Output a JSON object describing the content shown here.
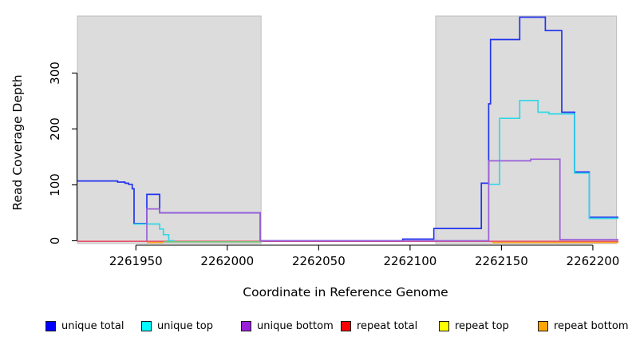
{
  "chart_data": {
    "type": "line",
    "subtype": "step-coverage-plot",
    "title": "",
    "xlabel": "Coordinate in Reference Genome",
    "ylabel": "Read Coverage Depth",
    "xlim": [
      2261918,
      2262214
    ],
    "ylim": [
      0,
      410
    ],
    "grid": false,
    "x_ticks": [
      2261950,
      2262000,
      2262050,
      2262100,
      2262150,
      2262200
    ],
    "y_ticks": [
      0,
      100,
      200,
      300
    ],
    "shaded_regions": [
      {
        "x0": 2261918,
        "x1": 2262018.5,
        "color": "#dcdcdc",
        "note": "left shaded block"
      },
      {
        "x0": 2262114,
        "x1": 2262213,
        "color": "#dcdcdc",
        "note": "right shaded block"
      }
    ],
    "series": [
      {
        "id": "unique_total",
        "name": "unique total",
        "color": "#2233ee",
        "legend_color": "#0000ff",
        "z": 3,
        "segments": [
          [
            [
              2261918,
              107
            ],
            [
              2261940,
              105
            ],
            [
              2261944,
              103
            ],
            [
              2261946,
              101
            ],
            [
              2261948,
              93
            ],
            [
              2261949,
              31
            ],
            [
              2261956,
              83
            ],
            [
              2261963,
              50
            ],
            [
              2262018,
              0
            ],
            [
              2262096,
              3
            ],
            [
              2262113,
              22
            ],
            [
              2262139,
              103
            ],
            [
              2262143,
              245
            ],
            [
              2262144,
              360
            ],
            [
              2262160,
              400
            ],
            [
              2262174,
              376
            ],
            [
              2262183,
              230
            ],
            [
              2262190,
              123
            ],
            [
              2262198,
              42
            ],
            [
              2262214,
              42
            ]
          ]
        ]
      },
      {
        "id": "unique_top",
        "name": "unique top",
        "color": "#2fd8e8",
        "legend_color": "#00ffff",
        "z": 4,
        "segments": [
          [
            [
              2261949,
              30
            ],
            [
              2261963,
              21
            ],
            [
              2261965,
              11
            ],
            [
              2261968,
              0
            ],
            [
              2261971,
              0
            ]
          ],
          [
            [
              2262143,
              101
            ],
            [
              2262149,
              219
            ],
            [
              2262160,
              251
            ],
            [
              2262170,
              230
            ],
            [
              2262176,
              227
            ],
            [
              2262190,
              121
            ],
            [
              2262198,
              40
            ],
            [
              2262214,
              40
            ]
          ]
        ]
      },
      {
        "id": "unique_bottom",
        "name": "unique bottom",
        "color": "#9a5fd8",
        "legend_color": "#9820d8",
        "z": 6,
        "segments": [
          [
            [
              2261956,
              0
            ],
            [
              2261956,
              57
            ],
            [
              2261963,
              50
            ],
            [
              2262018,
              0
            ],
            [
              2262143,
              143
            ],
            [
              2262166,
              146
            ],
            [
              2262182,
              2
            ],
            [
              2262214,
              2
            ]
          ]
        ]
      },
      {
        "id": "repeat_total",
        "name": "repeat total",
        "color": "#e8506a",
        "legend_color": "#ff0000",
        "z": 1,
        "segments": [
          [
            [
              2261918,
              0
            ],
            [
              2262214,
              0
            ]
          ]
        ]
      },
      {
        "id": "repeat_top",
        "name": "repeat top",
        "color": "#74c476",
        "legend_color": "#ffff00",
        "z": 5,
        "segments": [
          [
            [
              2261965,
              0
            ],
            [
              2262019,
              0
            ]
          ]
        ]
      },
      {
        "id": "repeat_bottom",
        "name": "repeat bottom",
        "color": "#ffa520",
        "legend_color": "#ffa500",
        "z": 2,
        "segments": [
          [
            [
              2261956,
              0
            ],
            [
              2261965,
              0
            ]
          ],
          [
            [
              2262145,
              0
            ],
            [
              2262214,
              0
            ]
          ]
        ]
      }
    ],
    "legend": {
      "position": "bottom",
      "entries": [
        {
          "label": "unique total",
          "color": "#0000ff"
        },
        {
          "label": "unique top",
          "color": "#00ffff"
        },
        {
          "label": "unique bottom",
          "color": "#9820d8"
        },
        {
          "label": "repeat total",
          "color": "#ff0000"
        },
        {
          "label": "repeat top",
          "color": "#ffff00"
        },
        {
          "label": "repeat bottom",
          "color": "#ffa500"
        }
      ]
    }
  }
}
